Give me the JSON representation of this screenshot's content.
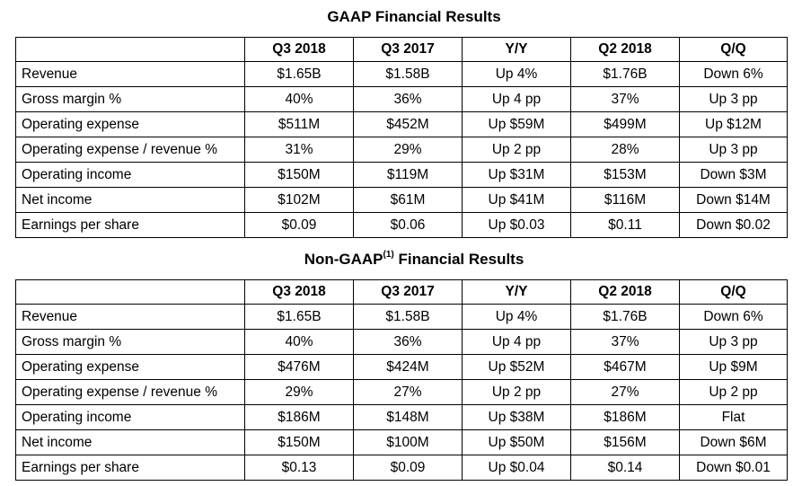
{
  "gaap": {
    "title": "GAAP Financial Results",
    "headers": [
      "",
      "Q3 2018",
      "Q3 2017",
      "Y/Y",
      "Q2 2018",
      "Q/Q"
    ],
    "rows": [
      [
        "Revenue",
        "$1.65B",
        "$1.58B",
        "Up 4%",
        "$1.76B",
        "Down 6%"
      ],
      [
        "Gross margin %",
        "40%",
        "36%",
        "Up 4 pp",
        "37%",
        "Up 3 pp"
      ],
      [
        "Operating expense",
        "$511M",
        "$452M",
        "Up $59M",
        "$499M",
        "Up $12M"
      ],
      [
        "Operating expense / revenue %",
        "31%",
        "29%",
        "Up 2 pp",
        "28%",
        "Up 3 pp"
      ],
      [
        "Operating income",
        "$150M",
        "$119M",
        "Up $31M",
        "$153M",
        "Down $3M"
      ],
      [
        "Net income",
        "$102M",
        "$61M",
        "Up $41M",
        "$116M",
        "Down $14M"
      ],
      [
        "Earnings per share",
        "$0.09",
        "$0.06",
        "Up $0.03",
        "$0.11",
        "Down $0.02"
      ]
    ]
  },
  "nongaap": {
    "title_prefix": "Non-GAAP",
    "title_footnote": "(1)",
    "title_suffix": " Financial Results",
    "headers": [
      "",
      "Q3 2018",
      "Q3 2017",
      "Y/Y",
      "Q2 2018",
      "Q/Q"
    ],
    "rows": [
      [
        "Revenue",
        "$1.65B",
        "$1.58B",
        "Up 4%",
        "$1.76B",
        "Down 6%"
      ],
      [
        "Gross margin %",
        "40%",
        "36%",
        "Up 4 pp",
        "37%",
        "Up 3 pp"
      ],
      [
        "Operating expense",
        "$476M",
        "$424M",
        "Up $52M",
        "$467M",
        "Up $9M"
      ],
      [
        "Operating expense / revenue %",
        "29%",
        "27%",
        "Up 2 pp",
        "27%",
        "Up 2 pp"
      ],
      [
        "Operating income",
        "$186M",
        "$148M",
        "Up $38M",
        "$186M",
        "Flat"
      ],
      [
        "Net income",
        "$150M",
        "$100M",
        "Up $50M",
        "$156M",
        "Down $6M"
      ],
      [
        "Earnings per share",
        "$0.13",
        "$0.09",
        "Up $0.04",
        "$0.14",
        "Down $0.01"
      ]
    ]
  }
}
